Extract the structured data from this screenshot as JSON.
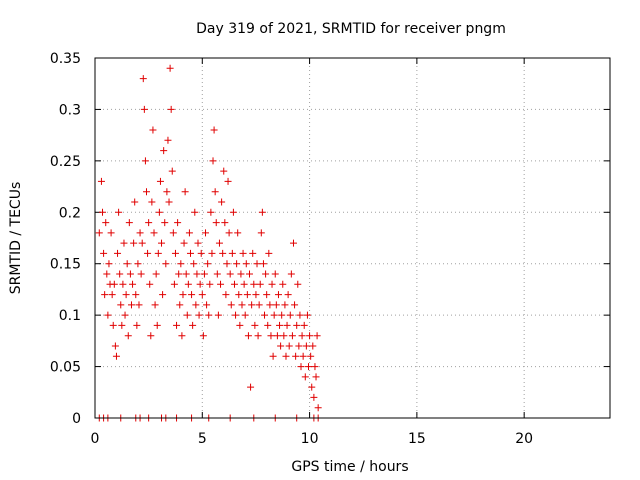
{
  "chart_data": {
    "type": "scatter",
    "title": "Day 319 of 2021, SRMTID for receiver pngm",
    "xlabel": "GPS time / hours",
    "ylabel": "SRMTID / TECUs",
    "xlim": [
      0,
      24
    ],
    "ylim": [
      0,
      0.35
    ],
    "x_ticks": [
      0,
      5,
      10,
      15,
      20
    ],
    "x_tick_labels": [
      "0",
      "5",
      "10",
      "15",
      "20"
    ],
    "y_ticks": [
      0,
      0.05,
      0.1,
      0.15,
      0.2,
      0.25,
      0.3,
      0.35
    ],
    "y_tick_labels": [
      "0",
      "0.05",
      "0.1",
      "0.15",
      "0.2",
      "0.25",
      "0.3",
      "0.35"
    ],
    "grid": true,
    "marker": "+",
    "color": "#e00000",
    "series": [
      {
        "name": "SRMTID",
        "points": [
          [
            0.2,
            0.18
          ],
          [
            0.3,
            0.23
          ],
          [
            0.35,
            0.2
          ],
          [
            0.4,
            0.16
          ],
          [
            0.45,
            0.12
          ],
          [
            0.5,
            0.19
          ],
          [
            0.55,
            0.14
          ],
          [
            0.6,
            0.1
          ],
          [
            0.65,
            0.15
          ],
          [
            0.7,
            0.13
          ],
          [
            0.75,
            0.18
          ],
          [
            0.8,
            0.12
          ],
          [
            0.85,
            0.09
          ],
          [
            0.9,
            0.13
          ],
          [
            0.95,
            0.07
          ],
          [
            1.0,
            0.06
          ],
          [
            1.05,
            0.16
          ],
          [
            1.1,
            0.2
          ],
          [
            1.15,
            0.14
          ],
          [
            1.2,
            0.11
          ],
          [
            1.25,
            0.09
          ],
          [
            1.3,
            0.13
          ],
          [
            1.35,
            0.17
          ],
          [
            1.4,
            0.1
          ],
          [
            1.45,
            0.12
          ],
          [
            1.5,
            0.15
          ],
          [
            1.55,
            0.08
          ],
          [
            1.6,
            0.19
          ],
          [
            1.65,
            0.14
          ],
          [
            1.7,
            0.11
          ],
          [
            1.75,
            0.13
          ],
          [
            1.8,
            0.17
          ],
          [
            1.85,
            0.21
          ],
          [
            1.9,
            0.12
          ],
          [
            1.95,
            0.09
          ],
          [
            2.0,
            0.15
          ],
          [
            2.05,
            0.11
          ],
          [
            2.1,
            0.18
          ],
          [
            2.15,
            0.14
          ],
          [
            2.2,
            0.17
          ],
          [
            2.25,
            0.33
          ],
          [
            2.3,
            0.3
          ],
          [
            2.35,
            0.25
          ],
          [
            2.4,
            0.22
          ],
          [
            2.45,
            0.16
          ],
          [
            2.5,
            0.19
          ],
          [
            2.55,
            0.13
          ],
          [
            2.6,
            0.08
          ],
          [
            2.65,
            0.21
          ],
          [
            2.7,
            0.28
          ],
          [
            2.75,
            0.18
          ],
          [
            2.8,
            0.11
          ],
          [
            2.85,
            0.14
          ],
          [
            2.9,
            0.09
          ],
          [
            2.95,
            0.16
          ],
          [
            3.0,
            0.2
          ],
          [
            3.05,
            0.23
          ],
          [
            3.1,
            0.17
          ],
          [
            3.15,
            0.12
          ],
          [
            3.2,
            0.26
          ],
          [
            3.25,
            0.19
          ],
          [
            3.3,
            0.15
          ],
          [
            3.35,
            0.22
          ],
          [
            3.4,
            0.27
          ],
          [
            3.45,
            0.21
          ],
          [
            3.5,
            0.34
          ],
          [
            3.55,
            0.3
          ],
          [
            3.6,
            0.24
          ],
          [
            3.65,
            0.18
          ],
          [
            3.7,
            0.13
          ],
          [
            3.75,
            0.16
          ],
          [
            3.8,
            0.09
          ],
          [
            3.85,
            0.19
          ],
          [
            3.9,
            0.14
          ],
          [
            3.95,
            0.11
          ],
          [
            4.0,
            0.15
          ],
          [
            4.05,
            0.08
          ],
          [
            4.1,
            0.12
          ],
          [
            4.15,
            0.17
          ],
          [
            4.2,
            0.22
          ],
          [
            4.25,
            0.14
          ],
          [
            4.3,
            0.1
          ],
          [
            4.35,
            0.13
          ],
          [
            4.4,
            0.18
          ],
          [
            4.45,
            0.16
          ],
          [
            4.5,
            0.12
          ],
          [
            4.55,
            0.09
          ],
          [
            4.6,
            0.15
          ],
          [
            4.65,
            0.2
          ],
          [
            4.7,
            0.11
          ],
          [
            4.75,
            0.14
          ],
          [
            4.8,
            0.17
          ],
          [
            4.85,
            0.1
          ],
          [
            4.9,
            0.13
          ],
          [
            4.95,
            0.16
          ],
          [
            5.0,
            0.12
          ],
          [
            5.05,
            0.08
          ],
          [
            5.1,
            0.14
          ],
          [
            5.15,
            0.18
          ],
          [
            5.2,
            0.11
          ],
          [
            5.25,
            0.15
          ],
          [
            5.3,
            0.1
          ],
          [
            5.35,
            0.13
          ],
          [
            5.4,
            0.2
          ],
          [
            5.45,
            0.16
          ],
          [
            5.5,
            0.25
          ],
          [
            5.55,
            0.28
          ],
          [
            5.6,
            0.22
          ],
          [
            5.65,
            0.19
          ],
          [
            5.7,
            0.14
          ],
          [
            5.75,
            0.1
          ],
          [
            5.8,
            0.17
          ],
          [
            5.85,
            0.13
          ],
          [
            5.9,
            0.21
          ],
          [
            5.95,
            0.16
          ],
          [
            6.0,
            0.24
          ],
          [
            6.05,
            0.19
          ],
          [
            6.1,
            0.12
          ],
          [
            6.15,
            0.15
          ],
          [
            6.2,
            0.23
          ],
          [
            6.25,
            0.18
          ],
          [
            6.3,
            0.14
          ],
          [
            6.35,
            0.11
          ],
          [
            6.4,
            0.16
          ],
          [
            6.45,
            0.2
          ],
          [
            6.5,
            0.13
          ],
          [
            6.55,
            0.1
          ],
          [
            6.6,
            0.15
          ],
          [
            6.65,
            0.18
          ],
          [
            6.7,
            0.12
          ],
          [
            6.75,
            0.09
          ],
          [
            6.8,
            0.14
          ],
          [
            6.85,
            0.11
          ],
          [
            6.9,
            0.16
          ],
          [
            6.95,
            0.13
          ],
          [
            7.0,
            0.1
          ],
          [
            7.05,
            0.15
          ],
          [
            7.1,
            0.12
          ],
          [
            7.15,
            0.08
          ],
          [
            7.2,
            0.14
          ],
          [
            7.25,
            0.03
          ],
          [
            7.3,
            0.11
          ],
          [
            7.35,
            0.16
          ],
          [
            7.4,
            0.13
          ],
          [
            7.45,
            0.09
          ],
          [
            7.5,
            0.12
          ],
          [
            7.55,
            0.15
          ],
          [
            7.6,
            0.08
          ],
          [
            7.65,
            0.11
          ],
          [
            7.7,
            0.13
          ],
          [
            7.75,
            0.18
          ],
          [
            7.8,
            0.2
          ],
          [
            7.85,
            0.15
          ],
          [
            7.9,
            0.1
          ],
          [
            7.95,
            0.14
          ],
          [
            8.0,
            0.12
          ],
          [
            8.05,
            0.09
          ],
          [
            8.1,
            0.16
          ],
          [
            8.15,
            0.11
          ],
          [
            8.2,
            0.08
          ],
          [
            8.25,
            0.13
          ],
          [
            8.3,
            0.06
          ],
          [
            8.35,
            0.1
          ],
          [
            8.4,
            0.14
          ],
          [
            8.45,
            0.11
          ],
          [
            8.5,
            0.08
          ],
          [
            8.55,
            0.12
          ],
          [
            8.6,
            0.09
          ],
          [
            8.65,
            0.07
          ],
          [
            8.7,
            0.1
          ],
          [
            8.75,
            0.13
          ],
          [
            8.8,
            0.08
          ],
          [
            8.85,
            0.11
          ],
          [
            8.9,
            0.06
          ],
          [
            8.95,
            0.09
          ],
          [
            9.0,
            0.12
          ],
          [
            9.05,
            0.07
          ],
          [
            9.1,
            0.1
          ],
          [
            9.15,
            0.14
          ],
          [
            9.2,
            0.08
          ],
          [
            9.25,
            0.17
          ],
          [
            9.3,
            0.11
          ],
          [
            9.35,
            0.06
          ],
          [
            9.4,
            0.09
          ],
          [
            9.45,
            0.13
          ],
          [
            9.5,
            0.07
          ],
          [
            9.55,
            0.1
          ],
          [
            9.6,
            0.05
          ],
          [
            9.65,
            0.08
          ],
          [
            9.7,
            0.06
          ],
          [
            9.75,
            0.09
          ],
          [
            9.8,
            0.04
          ],
          [
            9.85,
            0.07
          ],
          [
            9.9,
            0.1
          ],
          [
            9.95,
            0.05
          ],
          [
            10.0,
            0.08
          ],
          [
            10.05,
            0.06
          ],
          [
            10.1,
            0.03
          ],
          [
            10.15,
            0.07
          ],
          [
            10.2,
            0.02
          ],
          [
            10.25,
            0.05
          ],
          [
            10.3,
            0.04
          ],
          [
            10.35,
            0.08
          ],
          [
            10.4,
            0.01
          ],
          [
            0.2,
            0
          ],
          [
            0.4,
            0
          ],
          [
            0.6,
            0
          ],
          [
            1.2,
            0
          ],
          [
            1.9,
            0
          ],
          [
            2.1,
            0
          ],
          [
            2.5,
            0
          ],
          [
            3.1,
            0
          ],
          [
            3.3,
            0
          ],
          [
            3.8,
            0
          ],
          [
            4.5,
            0
          ],
          [
            5.3,
            0
          ],
          [
            6.3,
            0
          ],
          [
            7.4,
            0
          ],
          [
            8.4,
            0
          ],
          [
            9.4,
            0
          ],
          [
            10.2,
            0
          ],
          [
            10.4,
            0
          ]
        ]
      }
    ]
  }
}
